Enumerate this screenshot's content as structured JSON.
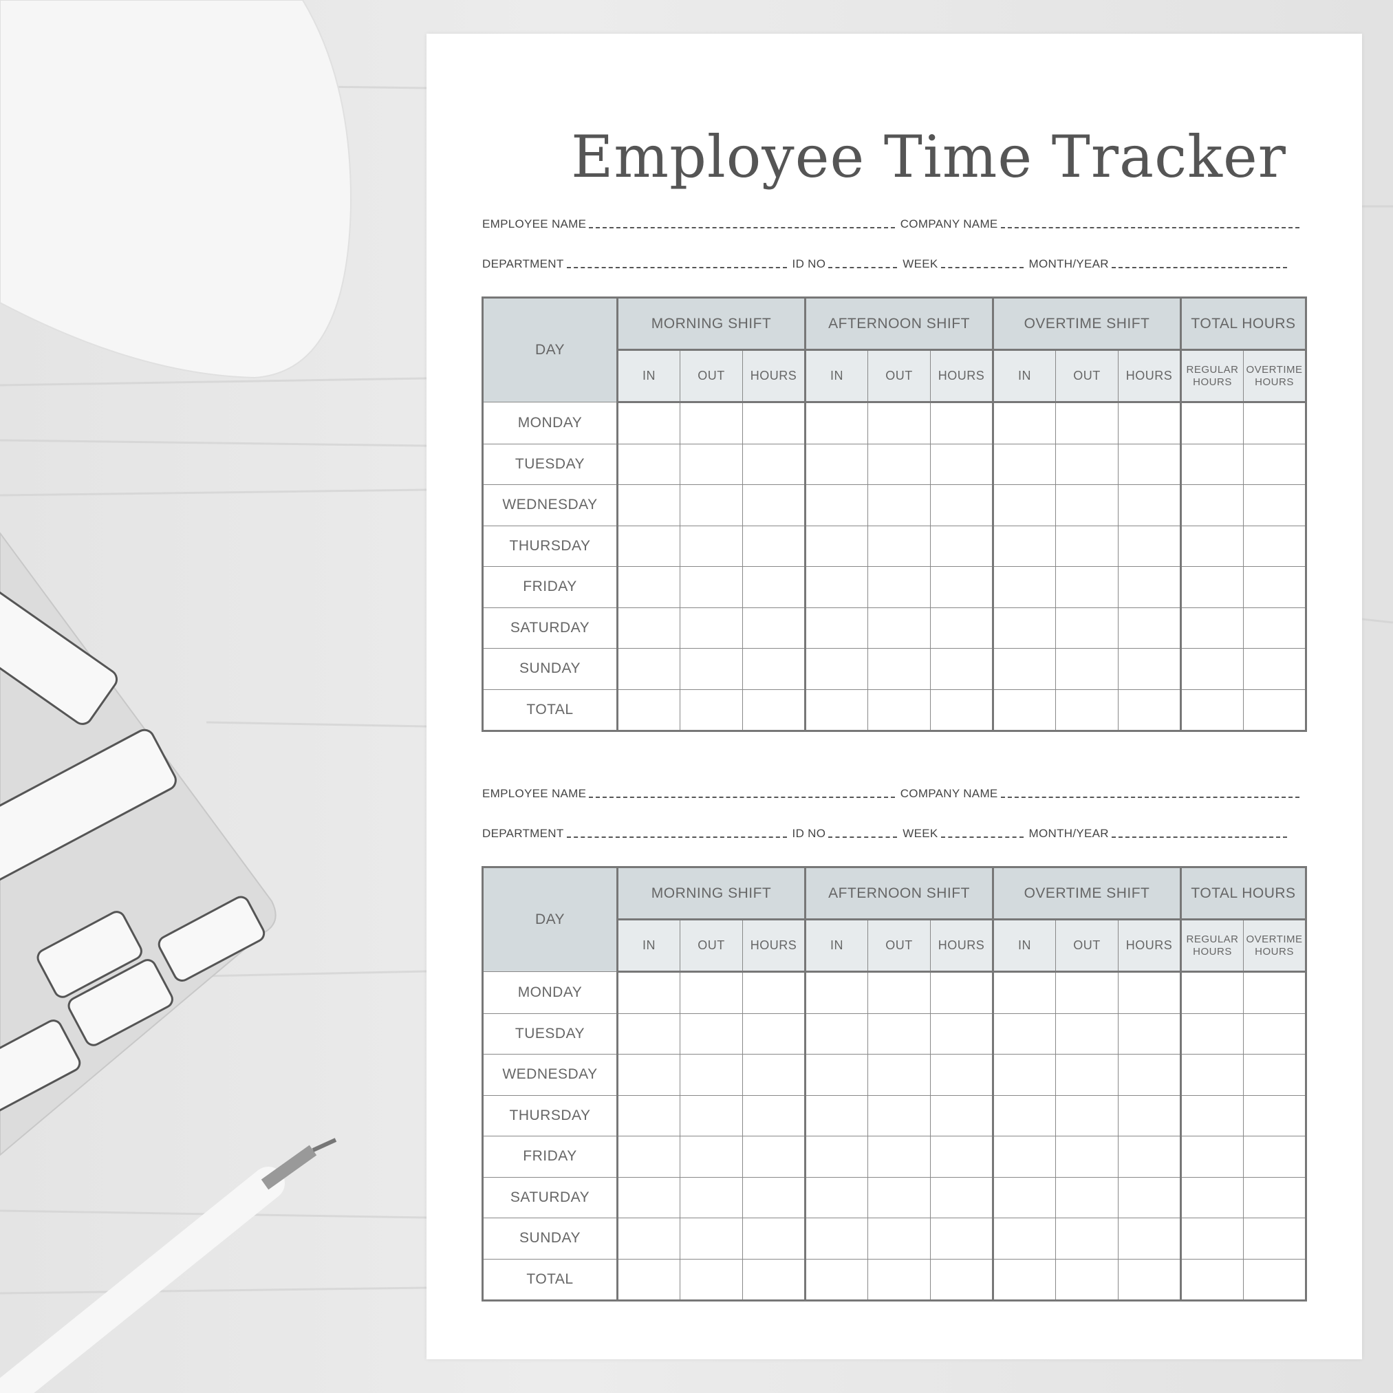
{
  "title": "Employee Time Tracker",
  "info_labels": {
    "employee_name": "EMPLOYEE NAME",
    "company_name": "COMPANY NAME",
    "department": "DEPARTMENT",
    "id_no": "ID NO",
    "week": "WEEK",
    "month_year": "MONTH/YEAR"
  },
  "table": {
    "day_header": "DAY",
    "groups": [
      "MORNING SHIFT",
      "AFTERNOON SHIFT",
      "OVERTIME SHIFT",
      "TOTAL HOURS"
    ],
    "shift_subheaders": [
      "IN",
      "OUT",
      "HOURS"
    ],
    "total_subheaders": [
      "REGULAR HOURS",
      "OVERTIME HOURS"
    ],
    "rows": [
      "MONDAY",
      "TUESDAY",
      "WEDNESDAY",
      "THURSDAY",
      "FRIDAY",
      "SATURDAY",
      "SUNDAY",
      "TOTAL"
    ]
  },
  "colors": {
    "header_dark": "#d3dadd",
    "header_light": "#e7ebed",
    "border": "#777777",
    "text": "#666666"
  },
  "background_props": [
    "computer-mouse",
    "keyboard",
    "pen"
  ]
}
